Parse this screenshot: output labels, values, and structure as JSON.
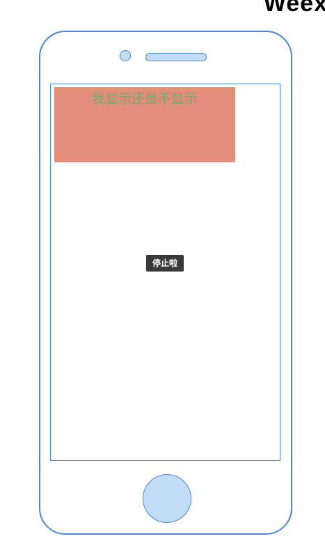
{
  "brand": {
    "text": "Weex"
  },
  "screen": {
    "box_text": "我显示还是不显示",
    "toast_text": "停止啦"
  },
  "colors": {
    "frame": "#4a86d6",
    "frame_fill": "#c3dcf7",
    "box_background": "#e38e7d",
    "box_text": "#7ba66e",
    "toast_background": "#3a3a3a"
  }
}
